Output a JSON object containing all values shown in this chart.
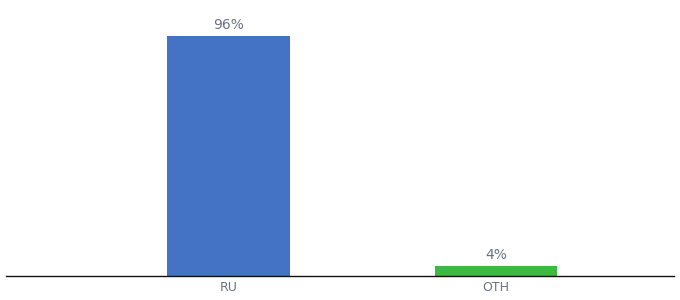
{
  "categories": [
    "RU",
    "OTH"
  ],
  "values": [
    96,
    4
  ],
  "bar_colors": [
    "#4472c4",
    "#3cb843"
  ],
  "labels": [
    "96%",
    "4%"
  ],
  "background_color": "#ffffff",
  "ylim": [
    0,
    108
  ],
  "xlim": [
    -0.5,
    2.5
  ],
  "x_positions": [
    0.5,
    1.7
  ],
  "bar_width": 0.55,
  "label_fontsize": 10,
  "tick_fontsize": 9,
  "tick_color": "#6b7280",
  "label_color": "#6b7280",
  "spine_color": "#111111"
}
